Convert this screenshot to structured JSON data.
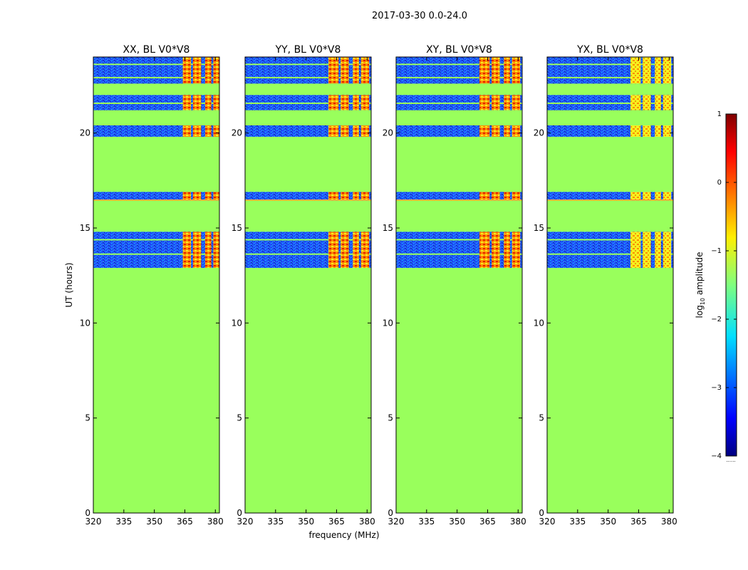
{
  "figure_title": "2017-03-30 0.0-24.0",
  "shared_xlabel": "frequency (MHz)",
  "shared_ylabel": "UT (hours)",
  "colorbar": {
    "label_main": "log",
    "label_sub": "10",
    "label_rest": " amplitude",
    "ticks": [
      "1",
      "0",
      "−1",
      "−2",
      "−3",
      "−4"
    ],
    "tick_values": [
      1,
      0,
      -1,
      -2,
      -3,
      -4
    ],
    "range": [
      -4,
      1
    ],
    "bottom_marker": "......"
  },
  "colors": {
    "background": "#99ff5c",
    "flagged_band": "#9cff58",
    "noise_dark": "#0a1aa8",
    "noise_mid": "#1f55ff",
    "noise_light": "#19b4ff",
    "rfi_red": "#e02000",
    "rfi_orange": "#ff8c00",
    "rfi_yellow": "#f7f020",
    "line_orange": "#ff9a30"
  },
  "chart_data": [
    {
      "type": "heatmap",
      "title": "XX, BL V0*V8",
      "xlim": [
        320,
        382
      ],
      "ylim": [
        0,
        24
      ],
      "xticks": [
        320,
        335,
        350,
        365,
        380
      ],
      "yticks": [
        0,
        5,
        10,
        15,
        20
      ],
      "xlabel": "",
      "ylabel": "UT (hours)",
      "data_bands_hours": [
        [
          12.9,
          14.8
        ],
        [
          16.5,
          16.9
        ],
        [
          19.8,
          20.4
        ],
        [
          21.2,
          22.0
        ],
        [
          22.6,
          24.0
        ]
      ],
      "rfi_channels_mhz": [
        [
          364,
          368
        ],
        [
          369,
          373
        ],
        [
          375,
          378
        ],
        [
          379,
          383
        ]
      ],
      "rfi_intensity": "high"
    },
    {
      "type": "heatmap",
      "title": "YY, BL V0*V8",
      "xlim": [
        320,
        382
      ],
      "ylim": [
        0,
        24
      ],
      "xticks": [
        320,
        335,
        350,
        365,
        380
      ],
      "yticks": [
        0,
        5,
        10,
        15,
        20
      ],
      "xlabel": "",
      "ylabel": "",
      "data_bands_hours": [
        [
          12.9,
          14.8
        ],
        [
          16.5,
          16.9
        ],
        [
          19.8,
          20.4
        ],
        [
          21.2,
          22.0
        ],
        [
          22.6,
          24.0
        ]
      ],
      "rfi_channels_mhz": [
        [
          361,
          366
        ],
        [
          367,
          371
        ],
        [
          373,
          376
        ],
        [
          377,
          381
        ]
      ],
      "rfi_intensity": "high"
    },
    {
      "type": "heatmap",
      "title": "XY, BL V0*V8",
      "xlim": [
        320,
        382
      ],
      "ylim": [
        0,
        24
      ],
      "xticks": [
        320,
        335,
        350,
        365,
        380
      ],
      "yticks": [
        0,
        5,
        10,
        15,
        20
      ],
      "xlabel": "",
      "ylabel": "",
      "data_bands_hours": [
        [
          12.9,
          14.8
        ],
        [
          16.5,
          16.9
        ],
        [
          19.8,
          20.4
        ],
        [
          21.2,
          22.0
        ],
        [
          22.6,
          24.0
        ]
      ],
      "rfi_channels_mhz": [
        [
          361,
          366
        ],
        [
          367,
          371
        ],
        [
          373,
          376
        ],
        [
          377,
          381
        ]
      ],
      "rfi_intensity": "high"
    },
    {
      "type": "heatmap",
      "title": "YX, BL V0*V8",
      "xlim": [
        320,
        382
      ],
      "ylim": [
        0,
        24
      ],
      "xticks": [
        320,
        335,
        350,
        365,
        380
      ],
      "yticks": [
        0,
        5,
        10,
        15,
        20
      ],
      "xlabel": "",
      "ylabel": "",
      "data_bands_hours": [
        [
          12.9,
          14.8
        ],
        [
          16.5,
          16.9
        ],
        [
          19.8,
          20.4
        ],
        [
          21.2,
          22.0
        ],
        [
          22.6,
          24.0
        ]
      ],
      "rfi_channels_mhz": [
        [
          361,
          366
        ],
        [
          367,
          371
        ],
        [
          373,
          376
        ],
        [
          377,
          381
        ]
      ],
      "rfi_intensity": "medium"
    }
  ]
}
